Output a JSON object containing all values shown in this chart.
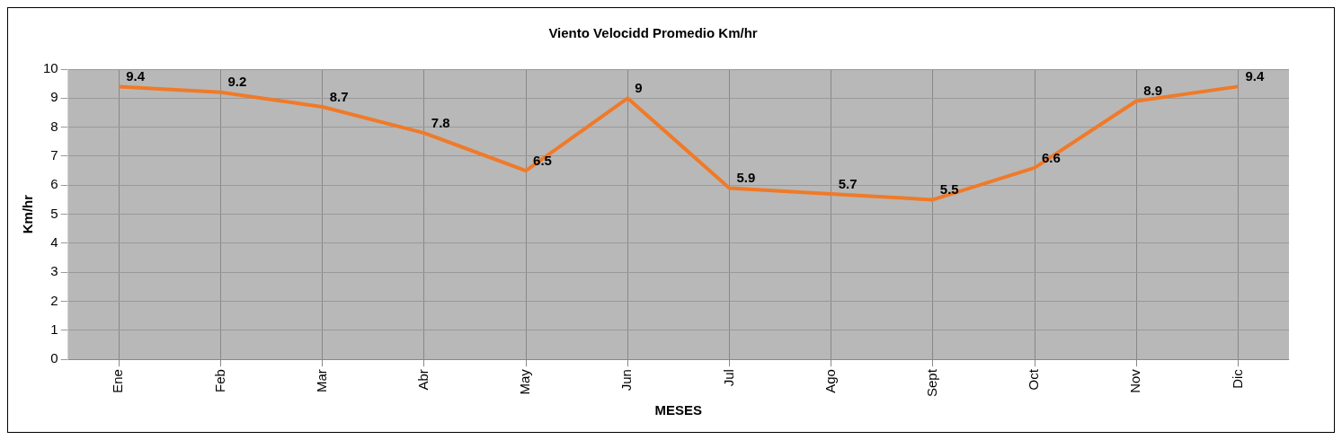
{
  "chart_data": {
    "type": "line",
    "title": "Viento Velocidd Promedio Km/hr",
    "xlabel": "MESES",
    "ylabel": "Km/hr",
    "categories": [
      "Ene",
      "Feb",
      "Mar",
      "Abr",
      "May",
      "Jun",
      "Jul",
      "Ago",
      "Sept",
      "Oct",
      "Nov",
      "Dic"
    ],
    "series": [
      {
        "color": "#f07a28",
        "values": [
          9.4,
          9.2,
          8.7,
          7.8,
          6.5,
          9,
          5.9,
          5.7,
          5.5,
          6.6,
          8.9,
          9.4
        ]
      }
    ],
    "ylim": [
      0,
      10
    ],
    "yticks": [
      0,
      1,
      2,
      3,
      4,
      5,
      6,
      7,
      8,
      9,
      10
    ],
    "grid": true,
    "legend": false,
    "marker": "none",
    "line_style": "solid",
    "data_labels": true
  }
}
